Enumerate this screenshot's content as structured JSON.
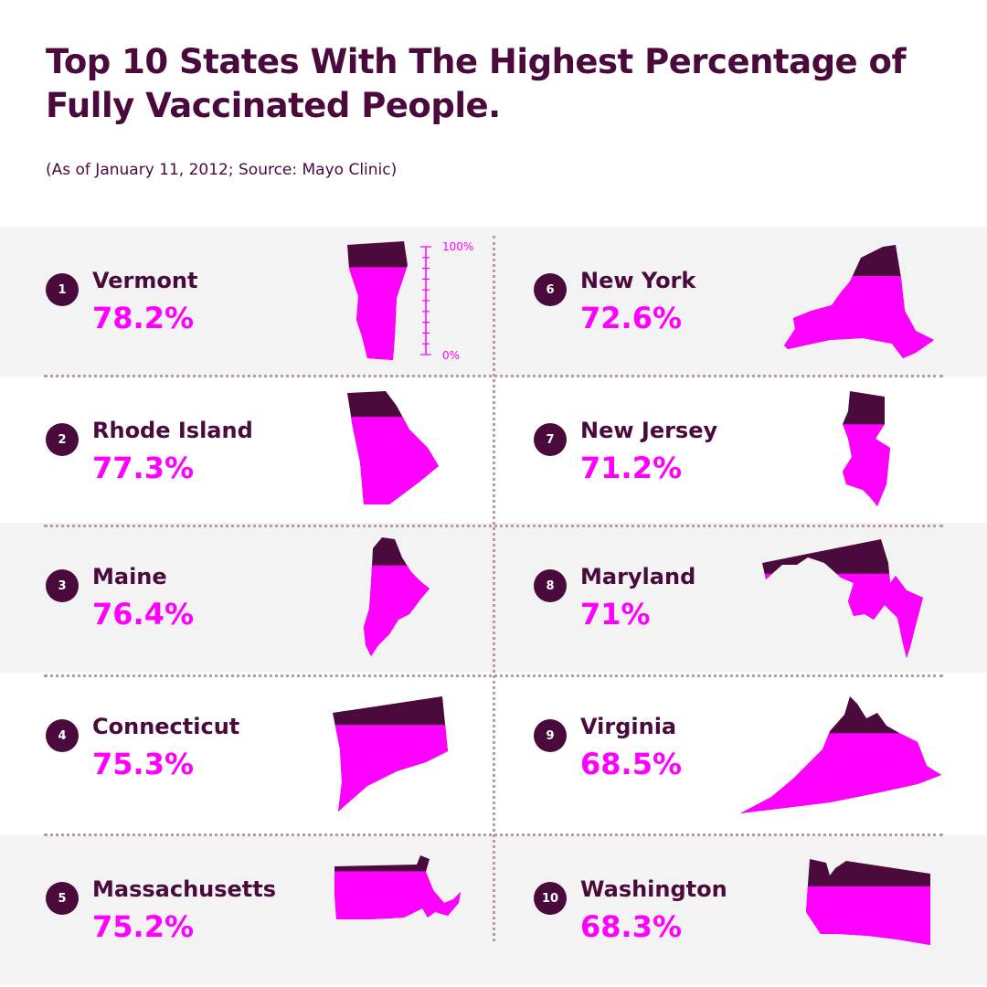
{
  "title": "Top 10 States With The Highest Percentage of Fully Vaccinated People.",
  "subtitle": "(As of January 11, 2012; Source: Mayo Clinic)",
  "colors": {
    "dark": "#4a0a3c",
    "accent": "#ff00ff",
    "band": "#f3f3f3",
    "divider": "#b99aab"
  },
  "scale": {
    "max_label": "100%",
    "min_label": "0%"
  },
  "chart_data": {
    "type": "table",
    "title": "Top 10 States With The Highest Percentage of Fully Vaccinated People.",
    "subtitle": "(As of January 11, 2012; Source: Mayo Clinic)",
    "ylim": [
      0,
      100
    ],
    "unit": "%",
    "items": [
      {
        "rank": "1",
        "state": "Vermont",
        "label": "78.2%",
        "value": 78.2,
        "shape": "vermont-icon"
      },
      {
        "rank": "2",
        "state": "Rhode Island",
        "label": "77.3%",
        "value": 77.3,
        "shape": "rhode-island-icon"
      },
      {
        "rank": "3",
        "state": "Maine",
        "label": "76.4%",
        "value": 76.4,
        "shape": "maine-icon"
      },
      {
        "rank": "4",
        "state": "Connecticut",
        "label": "75.3%",
        "value": 75.3,
        "shape": "connecticut-icon"
      },
      {
        "rank": "5",
        "state": "Massachusetts",
        "label": "75.2%",
        "value": 75.2,
        "shape": "massachusetts-icon"
      },
      {
        "rank": "6",
        "state": "New York",
        "label": "72.6%",
        "value": 72.6,
        "shape": "new-york-icon"
      },
      {
        "rank": "7",
        "state": "New Jersey",
        "label": "71.2%",
        "value": 71.2,
        "shape": "new-jersey-icon"
      },
      {
        "rank": "8",
        "state": "Maryland",
        "label": "71%",
        "value": 71.0,
        "shape": "maryland-icon"
      },
      {
        "rank": "9",
        "state": "Virginia",
        "label": "68.5%",
        "value": 68.5,
        "shape": "virginia-icon"
      },
      {
        "rank": "10",
        "state": "Washington",
        "label": "68.3%",
        "value": 68.3,
        "shape": "washington-icon"
      }
    ]
  }
}
